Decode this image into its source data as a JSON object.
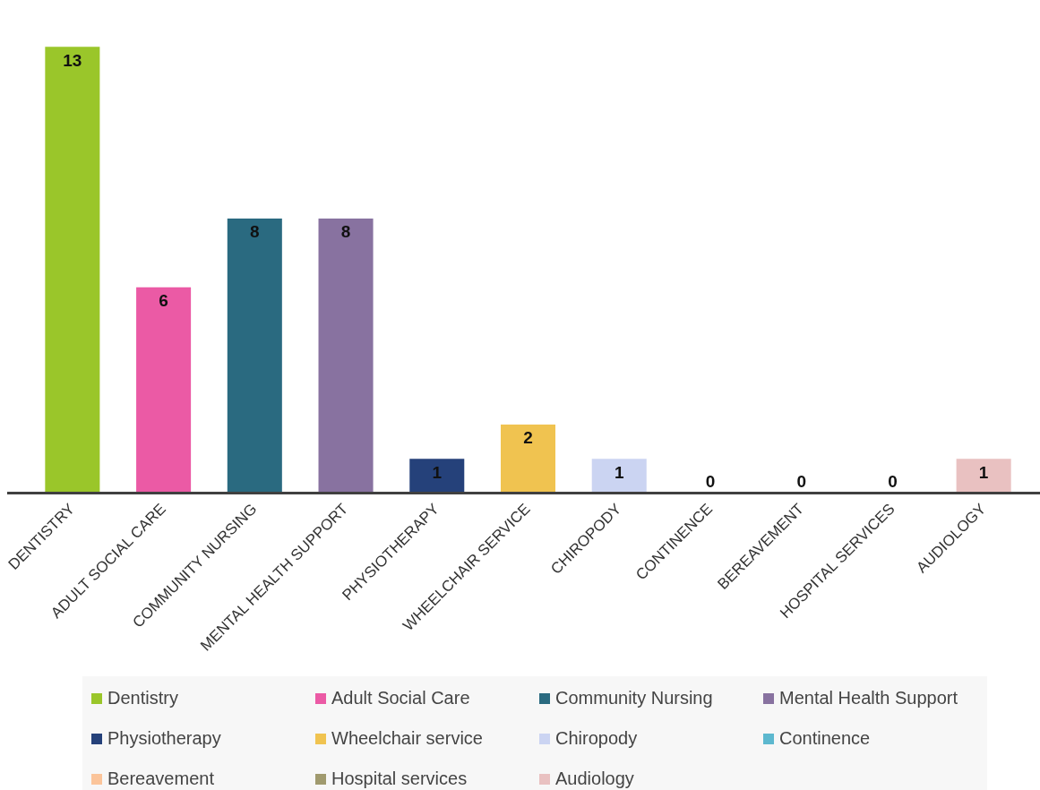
{
  "chart_data": {
    "type": "bar",
    "categories": [
      "DENTISTRY",
      "ADULT SOCIAL CARE",
      "COMMUNITY NURSING",
      "MENTAL HEALTH SUPPORT",
      "PHYSIOTHERAPY",
      "WHEELCHAIR SERVICE",
      "CHIROPODY",
      "CONTINENCE",
      "BEREAVEMENT",
      "HOSPITAL SERVICES",
      "AUDIOLOGY"
    ],
    "series": [
      {
        "name": "Dentistry",
        "color": "#9ac62a",
        "values": [
          13,
          null,
          null,
          null,
          null,
          null,
          null,
          null,
          null,
          null,
          null
        ]
      },
      {
        "name": "Adult Social Care",
        "color": "#eb5aa5",
        "values": [
          null,
          6,
          null,
          null,
          null,
          null,
          null,
          null,
          null,
          null,
          null
        ]
      },
      {
        "name": "Community Nursing",
        "color": "#2a6a80",
        "values": [
          null,
          null,
          8,
          null,
          null,
          null,
          null,
          null,
          null,
          null,
          null
        ]
      },
      {
        "name": "Mental Health Support",
        "color": "#8872a0",
        "values": [
          null,
          null,
          null,
          8,
          null,
          null,
          null,
          null,
          null,
          null,
          null
        ]
      },
      {
        "name": "Physiotherapy",
        "color": "#25417a",
        "values": [
          null,
          null,
          null,
          null,
          1,
          null,
          null,
          null,
          null,
          null,
          null
        ]
      },
      {
        "name": "Wheelchair service",
        "color": "#f0c350",
        "values": [
          null,
          null,
          null,
          null,
          null,
          2,
          null,
          null,
          null,
          null,
          null
        ]
      },
      {
        "name": "Chiropody",
        "color": "#cbd4f2",
        "values": [
          null,
          null,
          null,
          null,
          null,
          null,
          1,
          null,
          null,
          null,
          null
        ]
      },
      {
        "name": "Continence",
        "color": "#5db8cf",
        "values": [
          null,
          null,
          null,
          null,
          null,
          null,
          null,
          0,
          null,
          null,
          null
        ]
      },
      {
        "name": "Bereavement",
        "color": "#fbc49a",
        "values": [
          null,
          null,
          null,
          null,
          null,
          null,
          null,
          null,
          0,
          null,
          null
        ]
      },
      {
        "name": "Hospital services",
        "color": "#a09a6e",
        "values": [
          null,
          null,
          null,
          null,
          null,
          null,
          null,
          null,
          null,
          0,
          null
        ]
      },
      {
        "name": "Audiology",
        "color": "#e9c1c1",
        "values": [
          null,
          null,
          null,
          null,
          null,
          null,
          null,
          null,
          null,
          null,
          1
        ]
      }
    ],
    "data_labels": true,
    "grid": false,
    "legend": "bottom"
  }
}
